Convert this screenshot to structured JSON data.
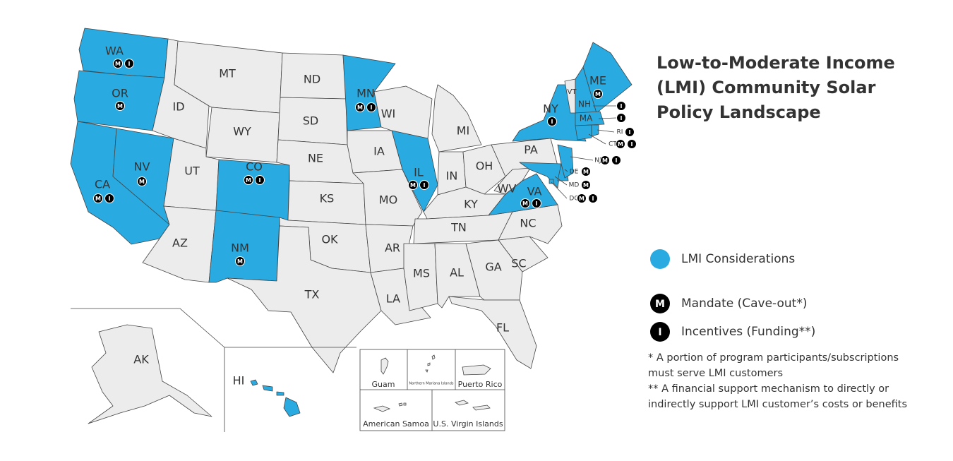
{
  "title_lines": [
    "Low-to-Moderate Income",
    "(LMI) Community Solar",
    "Policy Landscape"
  ],
  "badges": {
    "mandate": "M",
    "incentive": "I"
  },
  "legend": {
    "lmi": {
      "label": "LMI Considerations",
      "color": "#29abe2"
    },
    "mandate": {
      "label": "Mandate (Cave-out*)"
    },
    "incentive": {
      "label": "Incentives (Funding**)"
    }
  },
  "notes": [
    "* A portion of program participants/subscriptions",
    "must serve LMI customers",
    "** A financial support mechanism to directly or",
    "indirectly support LMI customer’s costs or benefits"
  ],
  "territories": [
    "Guam",
    "Northern Mariana Islands",
    "Puerto Rico",
    "American Samoa",
    "U.S. Virgin Islands"
  ],
  "states": [
    {
      "label": "WA",
      "lmi": true,
      "mandate": true,
      "incentive": true
    },
    {
      "label": "OR",
      "lmi": true,
      "mandate": true,
      "incentive": false
    },
    {
      "label": "CA",
      "lmi": true,
      "mandate": true,
      "incentive": true
    },
    {
      "label": "NV",
      "lmi": true,
      "mandate": true,
      "incentive": false
    },
    {
      "label": "ID",
      "lmi": false,
      "mandate": false,
      "incentive": false
    },
    {
      "label": "MT",
      "lmi": false,
      "mandate": false,
      "incentive": false
    },
    {
      "label": "WY",
      "lmi": false,
      "mandate": false,
      "incentive": false
    },
    {
      "label": "UT",
      "lmi": false,
      "mandate": false,
      "incentive": false
    },
    {
      "label": "AZ",
      "lmi": false,
      "mandate": false,
      "incentive": false
    },
    {
      "label": "CO",
      "lmi": true,
      "mandate": true,
      "incentive": true
    },
    {
      "label": "NM",
      "lmi": true,
      "mandate": true,
      "incentive": false
    },
    {
      "label": "ND",
      "lmi": false,
      "mandate": false,
      "incentive": false
    },
    {
      "label": "SD",
      "lmi": false,
      "mandate": false,
      "incentive": false
    },
    {
      "label": "NE",
      "lmi": false,
      "mandate": false,
      "incentive": false
    },
    {
      "label": "KS",
      "lmi": false,
      "mandate": false,
      "incentive": false
    },
    {
      "label": "OK",
      "lmi": false,
      "mandate": false,
      "incentive": false
    },
    {
      "label": "TX",
      "lmi": false,
      "mandate": false,
      "incentive": false
    },
    {
      "label": "MN",
      "lmi": true,
      "mandate": true,
      "incentive": true
    },
    {
      "label": "IA",
      "lmi": false,
      "mandate": false,
      "incentive": false
    },
    {
      "label": "MO",
      "lmi": false,
      "mandate": false,
      "incentive": false
    },
    {
      "label": "AR",
      "lmi": false,
      "mandate": false,
      "incentive": false
    },
    {
      "label": "LA",
      "lmi": false,
      "mandate": false,
      "incentive": false
    },
    {
      "label": "WI",
      "lmi": false,
      "mandate": false,
      "incentive": false
    },
    {
      "label": "IL",
      "lmi": true,
      "mandate": true,
      "incentive": true
    },
    {
      "label": "MI",
      "lmi": false,
      "mandate": false,
      "incentive": false
    },
    {
      "label": "IN",
      "lmi": false,
      "mandate": false,
      "incentive": false
    },
    {
      "label": "OH",
      "lmi": false,
      "mandate": false,
      "incentive": false
    },
    {
      "label": "KY",
      "lmi": false,
      "mandate": false,
      "incentive": false
    },
    {
      "label": "TN",
      "lmi": false,
      "mandate": false,
      "incentive": false
    },
    {
      "label": "MS",
      "lmi": false,
      "mandate": false,
      "incentive": false
    },
    {
      "label": "AL",
      "lmi": false,
      "mandate": false,
      "incentive": false
    },
    {
      "label": "GA",
      "lmi": false,
      "mandate": false,
      "incentive": false
    },
    {
      "label": "FL",
      "lmi": false,
      "mandate": false,
      "incentive": false
    },
    {
      "label": "SC",
      "lmi": false,
      "mandate": false,
      "incentive": false
    },
    {
      "label": "NC",
      "lmi": false,
      "mandate": false,
      "incentive": false
    },
    {
      "label": "VA",
      "lmi": true,
      "mandate": true,
      "incentive": true
    },
    {
      "label": "WV",
      "lmi": false,
      "mandate": false,
      "incentive": false
    },
    {
      "label": "PA",
      "lmi": false,
      "mandate": false,
      "incentive": false
    },
    {
      "label": "NY",
      "lmi": true,
      "mandate": false,
      "incentive": true
    },
    {
      "label": "MD",
      "lmi": true,
      "mandate": true,
      "incentive": false
    },
    {
      "label": "DE",
      "lmi": true,
      "mandate": true,
      "incentive": false
    },
    {
      "label": "NJ",
      "lmi": true,
      "mandate": true,
      "incentive": true
    },
    {
      "label": "VT",
      "lmi": false,
      "mandate": false,
      "incentive": false
    },
    {
      "label": "NH",
      "lmi": true,
      "mandate": false,
      "incentive": true
    },
    {
      "label": "ME",
      "lmi": true,
      "mandate": true,
      "incentive": false
    },
    {
      "label": "MA",
      "lmi": true,
      "mandate": false,
      "incentive": true
    },
    {
      "label": "CT",
      "lmi": true,
      "mandate": true,
      "incentive": true
    },
    {
      "label": "RI",
      "lmi": true,
      "mandate": false,
      "incentive": true
    },
    {
      "label": "DC",
      "lmi": true,
      "mandate": true,
      "incentive": true
    },
    {
      "label": "AK",
      "lmi": false,
      "mandate": false,
      "incentive": false
    },
    {
      "label": "HI",
      "lmi": true,
      "mandate": false,
      "incentive": false
    }
  ]
}
